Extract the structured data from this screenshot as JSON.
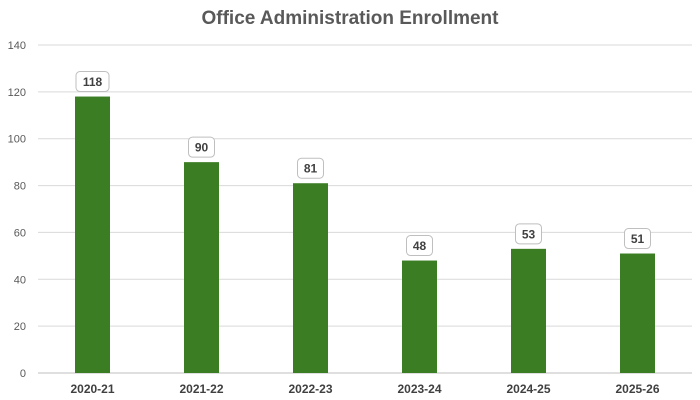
{
  "chart_data": {
    "type": "bar",
    "title": "Office Administration Enrollment",
    "xlabel": "",
    "ylabel": "",
    "categories": [
      "2020-21",
      "2021-22",
      "2022-23",
      "2023-24",
      "2024-25",
      "2025-26"
    ],
    "values": [
      118,
      90,
      81,
      48,
      53,
      51
    ],
    "ylim": [
      0,
      140
    ],
    "yticks": [
      0,
      20,
      40,
      60,
      80,
      100,
      120,
      140
    ],
    "grid": true,
    "legend": "none",
    "bar_color": "#3a7d22"
  }
}
